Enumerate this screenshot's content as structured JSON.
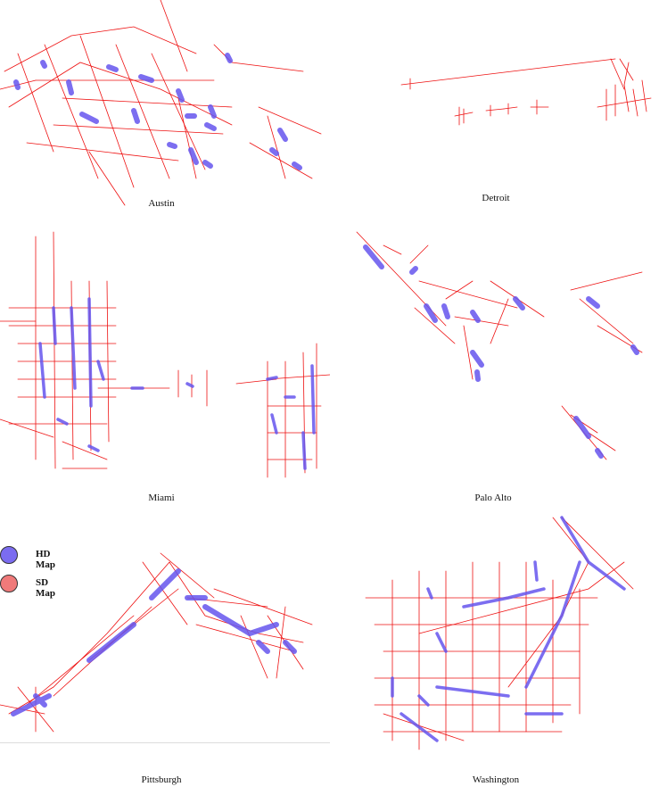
{
  "legend": {
    "hd_label": "HD Map",
    "sd_label": "SD Map",
    "hd_color": "#7b6cf0",
    "sd_color": "#f07a7a"
  },
  "panels": [
    {
      "id": "austin",
      "caption": "Austin"
    },
    {
      "id": "detroit",
      "caption": "Detroit"
    },
    {
      "id": "miami",
      "caption": "Miami"
    },
    {
      "id": "palo_alto",
      "caption": "Palo Alto"
    },
    {
      "id": "pittsburgh",
      "caption": "Pittsburgh"
    },
    {
      "id": "washington",
      "caption": "Washington"
    }
  ]
}
